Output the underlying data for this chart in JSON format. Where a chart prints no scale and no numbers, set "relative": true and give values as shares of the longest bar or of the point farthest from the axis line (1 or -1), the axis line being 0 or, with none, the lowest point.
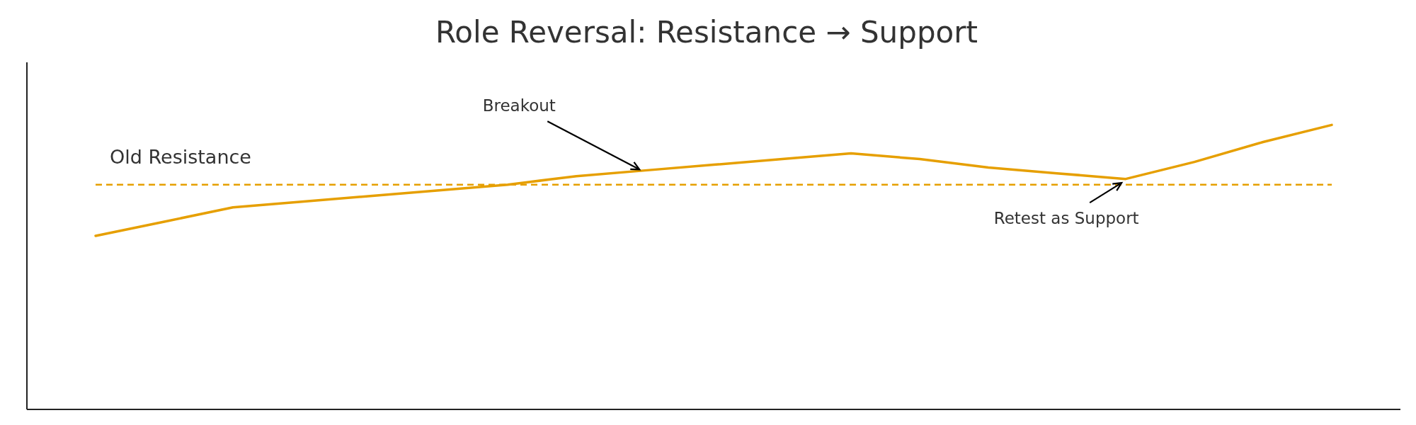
{
  "chart_data": {
    "type": "line",
    "title": "Role Reversal: Resistance → Support",
    "relative": true,
    "categories": [
      null,
      null,
      null,
      null,
      null,
      null,
      null,
      null,
      null,
      null,
      null,
      null,
      null,
      null,
      null,
      null,
      null,
      null,
      null
    ],
    "series": [
      {
        "color": "#e69f00",
        "values": [
          0.61,
          0.66,
          0.71,
          0.73,
          0.75,
          0.77,
          0.79,
          0.82,
          0.84,
          0.86,
          0.88,
          0.9,
          0.88,
          0.85,
          0.83,
          0.81,
          0.87,
          0.94,
          1
        ]
      }
    ],
    "ref_lines": [
      {
        "axis": "y",
        "value": 0.79,
        "label": "Old Resistance",
        "color": "#e69f00",
        "line_style": "dashed"
      }
    ],
    "annotations": [
      "Breakout",
      "Retest as Support"
    ]
  }
}
